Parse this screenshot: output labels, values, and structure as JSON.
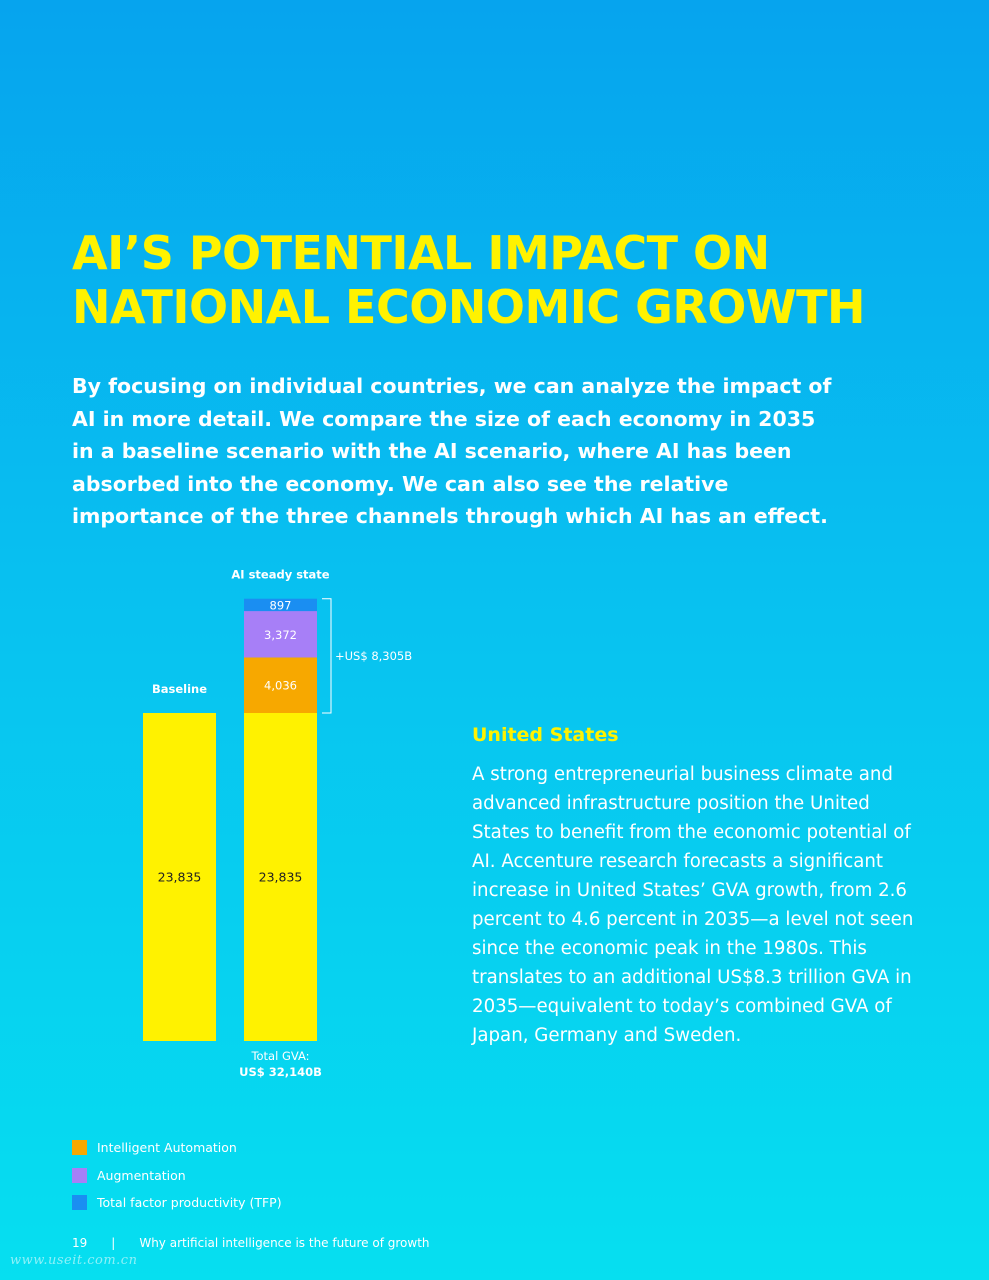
{
  "title": {
    "line1": "AI’S POTENTIAL IMPACT ON",
    "line2": "NATIONAL ECONOMIC GROWTH"
  },
  "intro": "By focusing on individual countries, we can analyze the impact of AI in more detail. We compare the size of each economy in 2035 in a baseline scenario with the AI scenario, where AI has been absorbed into the economy. We can also see the relative importance of the three channels through which AI has an effect.",
  "chart_data": {
    "type": "bar",
    "stacked": true,
    "categories": [
      "Baseline",
      "AI steady state"
    ],
    "series": [
      {
        "name": "",
        "color": "#fff200",
        "values": [
          23835,
          23835
        ],
        "labels": [
          "23,835",
          "23,835"
        ]
      },
      {
        "name": "Intelligent Automation",
        "color": "#f7a800",
        "values": [
          0,
          4036
        ],
        "labels": [
          "",
          "4,036"
        ]
      },
      {
        "name": "Augmentation",
        "color": "#a77ff7",
        "values": [
          0,
          3372
        ],
        "labels": [
          "",
          "3,372"
        ]
      },
      {
        "name": "Total factor productivity (TFP)",
        "color": "#1a8ef2",
        "values": [
          0,
          897
        ],
        "labels": [
          "",
          "897"
        ]
      }
    ],
    "annotations": {
      "increase": "+US$ 8,305B",
      "total_label": "Total GVA:",
      "total_value": "US$ 32,140B"
    }
  },
  "country": {
    "name": "United States",
    "text": "A strong entrepreneurial business climate and advanced infrastructure position the United States to benefit from the economic potential of AI. Accenture research forecasts a significant increase in United States’ GVA growth, from 2.6 percent to 4.6 percent in 2035—a level not seen since the economic peak in the 1980s. This translates to an additional US$8.3 trillion GVA in 2035—equivalent to today’s combined GVA of Japan, Germany and Sweden."
  },
  "legend": [
    {
      "label": "Intelligent Automation",
      "color": "#f7a800"
    },
    {
      "label": "Augmentation",
      "color": "#a77ff7"
    },
    {
      "label": "Total factor productivity (TFP)",
      "color": "#1a8ef2"
    }
  ],
  "footer": {
    "page_number": "19",
    "separator": "|",
    "text": "Why artificial intelligence is the future of growth"
  },
  "watermark": "www.useit.com.cn"
}
